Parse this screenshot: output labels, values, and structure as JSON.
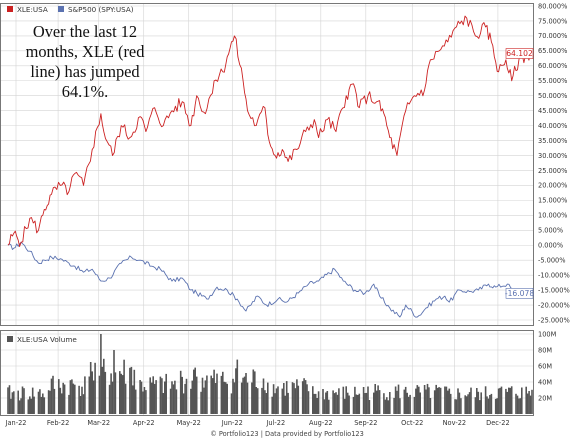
{
  "annotation": "Over the last 12 months, XLE (red line) has jumped 64.1%.",
  "footer": "© Portfolio123 | Data provided by Portfolio123",
  "colors": {
    "xle": "#cc2222",
    "spy": "#5b72b0",
    "volume": "#555555",
    "grid": "#d4d4d4",
    "border": "#777777"
  },
  "chart_data": [
    {
      "type": "line",
      "legend": [
        {
          "name": "XLE:USA",
          "color": "#cc2222",
          "icon": "red-square"
        },
        {
          "name": "S&P500 (SPY:USA)",
          "color": "#5b72b0",
          "icon": "blue-square"
        }
      ],
      "x_tick_labels": [
        "Jan-22",
        "Feb-22",
        "Mar-22",
        "Apr-22",
        "May-22",
        "Jun-22",
        "Jul-22",
        "Aug-22",
        "Sep-22",
        "Oct-22",
        "Nov-22",
        "Dec-22"
      ],
      "y_tick_labels": [
        "-25.000%",
        "-20.000%",
        "-15.000%",
        "-10.000%",
        "-5.000%",
        "0.000%",
        "5.000%",
        "10.000%",
        "15.000%",
        "20.000%",
        "25.000%",
        "30.000%",
        "35.000%",
        "40.000%",
        "45.000%",
        "50.000%",
        "55.000%",
        "60.000%",
        "65.000%",
        "70.000%",
        "75.000%",
        "80.000%"
      ],
      "ylim": [
        -25,
        80
      ],
      "y_unit": "%",
      "grid": true,
      "series": [
        {
          "name": "XLE:USA",
          "end_label": "64.102",
          "points": [
            [
              "2022-01-03",
              0
            ],
            [
              "2022-01-07",
              4
            ],
            [
              "2022-01-12",
              1
            ],
            [
              "2022-01-18",
              9
            ],
            [
              "2022-01-24",
              5
            ],
            [
              "2022-01-28",
              12
            ],
            [
              "2022-02-02",
              17
            ],
            [
              "2022-02-08",
              20
            ],
            [
              "2022-02-14",
              18
            ],
            [
              "2022-02-18",
              24
            ],
            [
              "2022-02-24",
              20
            ],
            [
              "2022-03-02",
              32
            ],
            [
              "2022-03-08",
              44
            ],
            [
              "2022-03-10",
              38
            ],
            [
              "2022-03-16",
              30
            ],
            [
              "2022-03-22",
              40
            ],
            [
              "2022-03-28",
              36
            ],
            [
              "2022-04-04",
              43
            ],
            [
              "2022-04-08",
              38
            ],
            [
              "2022-04-14",
              46
            ],
            [
              "2022-04-20",
              40
            ],
            [
              "2022-04-26",
              45
            ],
            [
              "2022-05-03",
              48
            ],
            [
              "2022-05-09",
              40
            ],
            [
              "2022-05-13",
              50
            ],
            [
              "2022-05-19",
              44
            ],
            [
              "2022-05-25",
              55
            ],
            [
              "2022-05-31",
              58
            ],
            [
              "2022-06-03",
              63
            ],
            [
              "2022-06-08",
              70
            ],
            [
              "2022-06-14",
              55
            ],
            [
              "2022-06-17",
              45
            ],
            [
              "2022-06-23",
              40
            ],
            [
              "2022-06-29",
              46
            ],
            [
              "2022-07-01",
              37
            ],
            [
              "2022-07-06",
              30
            ],
            [
              "2022-07-11",
              32
            ],
            [
              "2022-07-15",
              28
            ],
            [
              "2022-07-21",
              32
            ],
            [
              "2022-07-27",
              38
            ],
            [
              "2022-08-02",
              42
            ],
            [
              "2022-08-05",
              36
            ],
            [
              "2022-08-11",
              42
            ],
            [
              "2022-08-17",
              38
            ],
            [
              "2022-08-24",
              50
            ],
            [
              "2022-08-29",
              54
            ],
            [
              "2022-09-02",
              46
            ],
            [
              "2022-09-08",
              50
            ],
            [
              "2022-09-14",
              48
            ],
            [
              "2022-09-19",
              44
            ],
            [
              "2022-09-23",
              36
            ],
            [
              "2022-09-28",
              30
            ],
            [
              "2022-10-04",
              45
            ],
            [
              "2022-10-10",
              50
            ],
            [
              "2022-10-17",
              52
            ],
            [
              "2022-10-21",
              62
            ],
            [
              "2022-10-27",
              65
            ],
            [
              "2022-11-02",
              68
            ],
            [
              "2022-11-08",
              73
            ],
            [
              "2022-11-15",
              76
            ],
            [
              "2022-11-21",
              70
            ],
            [
              "2022-11-28",
              73
            ],
            [
              "2022-12-02",
              68
            ],
            [
              "2022-12-07",
              58
            ],
            [
              "2022-12-12",
              62
            ],
            [
              "2022-12-16",
              55
            ],
            [
              "2022-12-21",
              62
            ],
            [
              "2022-12-29",
              64.1
            ]
          ]
        },
        {
          "name": "S&P500 (SPY:USA)",
          "end_label": "-16.078",
          "points": [
            [
              "2022-01-03",
              0
            ],
            [
              "2022-01-07",
              -1
            ],
            [
              "2022-01-12",
              1
            ],
            [
              "2022-01-18",
              -2
            ],
            [
              "2022-01-24",
              -6
            ],
            [
              "2022-01-28",
              -5
            ],
            [
              "2022-02-02",
              -4
            ],
            [
              "2022-02-08",
              -4.5
            ],
            [
              "2022-02-14",
              -6
            ],
            [
              "2022-02-18",
              -7
            ],
            [
              "2022-02-24",
              -9
            ],
            [
              "2022-03-02",
              -8
            ],
            [
              "2022-03-08",
              -12
            ],
            [
              "2022-03-14",
              -11
            ],
            [
              "2022-03-22",
              -6
            ],
            [
              "2022-03-29",
              -4
            ],
            [
              "2022-04-04",
              -5
            ],
            [
              "2022-04-12",
              -7
            ],
            [
              "2022-04-18",
              -8
            ],
            [
              "2022-04-26",
              -12
            ],
            [
              "2022-05-03",
              -11
            ],
            [
              "2022-05-09",
              -15
            ],
            [
              "2022-05-13",
              -16
            ],
            [
              "2022-05-20",
              -18
            ],
            [
              "2022-05-27",
              -14
            ],
            [
              "2022-06-03",
              -15
            ],
            [
              "2022-06-10",
              -18
            ],
            [
              "2022-06-16",
              -22
            ],
            [
              "2022-06-24",
              -17
            ],
            [
              "2022-06-30",
              -20
            ],
            [
              "2022-07-08",
              -18
            ],
            [
              "2022-07-14",
              -19
            ],
            [
              "2022-07-22",
              -16
            ],
            [
              "2022-07-29",
              -13
            ],
            [
              "2022-08-05",
              -12
            ],
            [
              "2022-08-16",
              -8
            ],
            [
              "2022-08-22",
              -12
            ],
            [
              "2022-08-30",
              -15
            ],
            [
              "2022-09-06",
              -16
            ],
            [
              "2022-09-12",
              -13
            ],
            [
              "2022-09-16",
              -17
            ],
            [
              "2022-09-23",
              -21
            ],
            [
              "2022-09-30",
              -24
            ],
            [
              "2022-10-04",
              -20
            ],
            [
              "2022-10-12",
              -24
            ],
            [
              "2022-10-18",
              -21
            ],
            [
              "2022-10-25",
              -18
            ],
            [
              "2022-10-31",
              -17
            ],
            [
              "2022-11-03",
              -19
            ],
            [
              "2022-11-10",
              -15
            ],
            [
              "2022-11-17",
              -15.5
            ],
            [
              "2022-11-23",
              -15
            ],
            [
              "2022-11-30",
              -13
            ],
            [
              "2022-12-05",
              -14
            ],
            [
              "2022-12-13",
              -13
            ],
            [
              "2022-12-20",
              -17
            ],
            [
              "2022-12-29",
              -16.078
            ]
          ]
        }
      ]
    },
    {
      "type": "bar",
      "title": "XLE:USA Volume",
      "legend_icon": "gray-square",
      "y_tick_labels": [
        "20M",
        "40M",
        "60M",
        "80M",
        "100M"
      ],
      "ylim": [
        0,
        100
      ],
      "y_unit": "M",
      "monthly_typical_volume_m": [
        [
          "Jan-22",
          26
        ],
        [
          "Feb-22",
          36
        ],
        [
          "Mar-22",
          52
        ],
        [
          "Apr-22",
          36
        ],
        [
          "May-22",
          42
        ],
        [
          "Jun-22",
          43
        ],
        [
          "Jul-22",
          33
        ],
        [
          "Aug-22",
          26
        ],
        [
          "Sep-22",
          28
        ],
        [
          "Oct-22",
          27
        ],
        [
          "Nov-22",
          25
        ],
        [
          "Dec-22",
          27
        ]
      ],
      "peaks_m": [
        [
          "2022-03-08",
          100
        ],
        [
          "2022-03-17",
          80
        ],
        [
          "2022-06-10",
          68
        ],
        [
          "2022-05-12",
          58
        ],
        [
          "2022-03-01",
          65
        ]
      ]
    }
  ]
}
